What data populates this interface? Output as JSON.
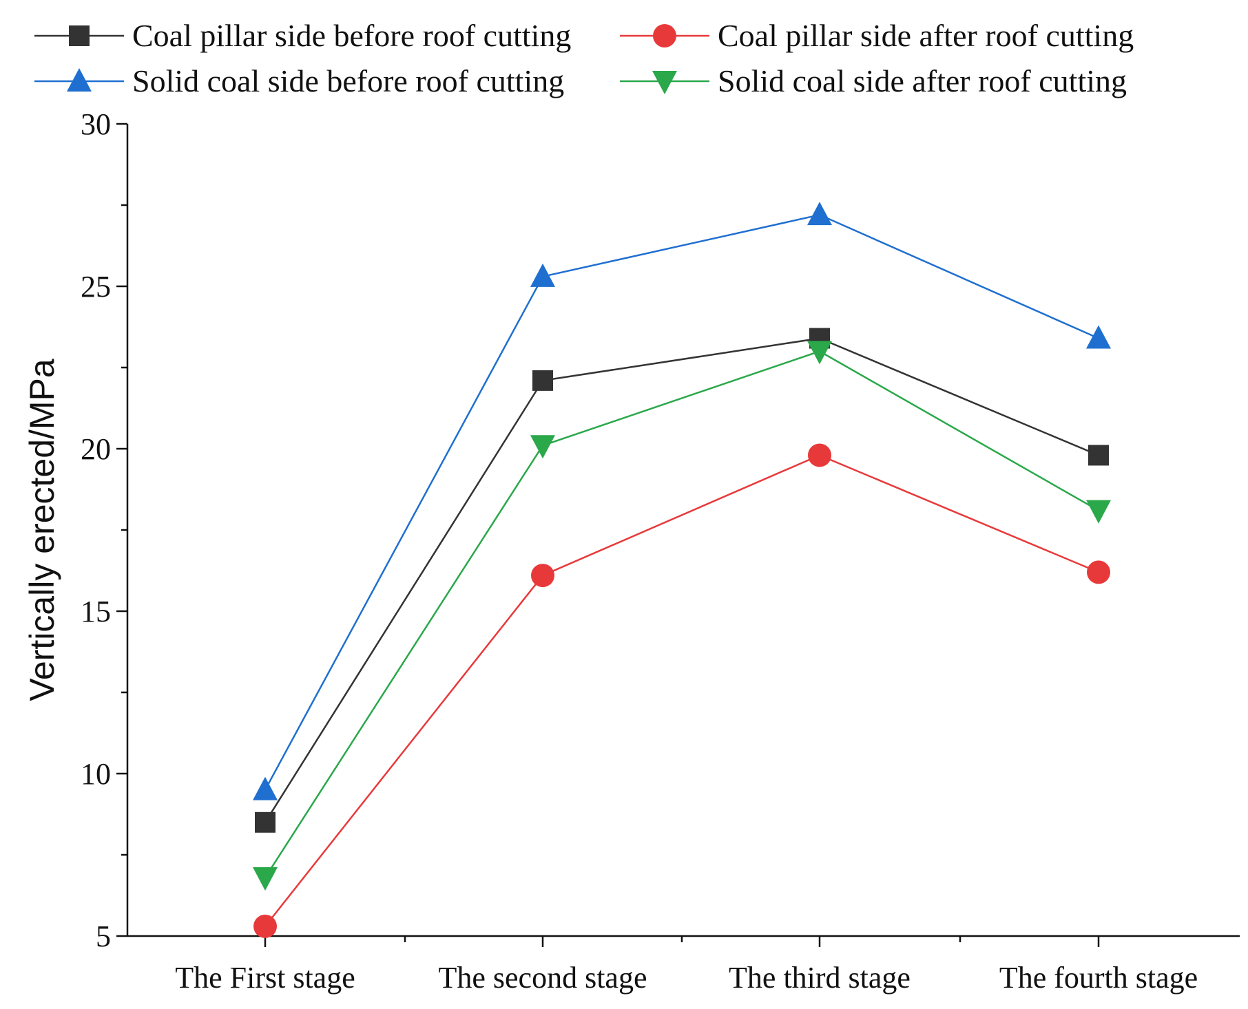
{
  "chart_data": {
    "type": "line",
    "title": "",
    "xlabel": "",
    "ylabel": "Vertically erected/MPa",
    "categories": [
      "The First stage",
      "The second stage",
      "The third stage",
      "The fourth stage"
    ],
    "ylim": [
      5,
      30
    ],
    "yticks": [
      5,
      10,
      15,
      20,
      25,
      30
    ],
    "grid": false,
    "legend_position": "top",
    "series": [
      {
        "name": "Coal pillar side before roof cutting",
        "values": [
          8.5,
          22.1,
          23.4,
          19.8
        ],
        "color": "#333333",
        "marker": "square"
      },
      {
        "name": "Coal pillar side after roof cutting",
        "values": [
          5.3,
          16.1,
          19.8,
          16.2
        ],
        "color": "#e8393a",
        "marker": "circle"
      },
      {
        "name": "Solid coal side before roof cutting",
        "values": [
          9.5,
          25.3,
          27.2,
          23.4
        ],
        "color": "#1f6fd0",
        "marker": "triangle-up"
      },
      {
        "name": "Solid coal side after roof cutting",
        "values": [
          6.8,
          20.1,
          23.0,
          18.1
        ],
        "color": "#2aa84a",
        "marker": "triangle-down"
      }
    ]
  }
}
